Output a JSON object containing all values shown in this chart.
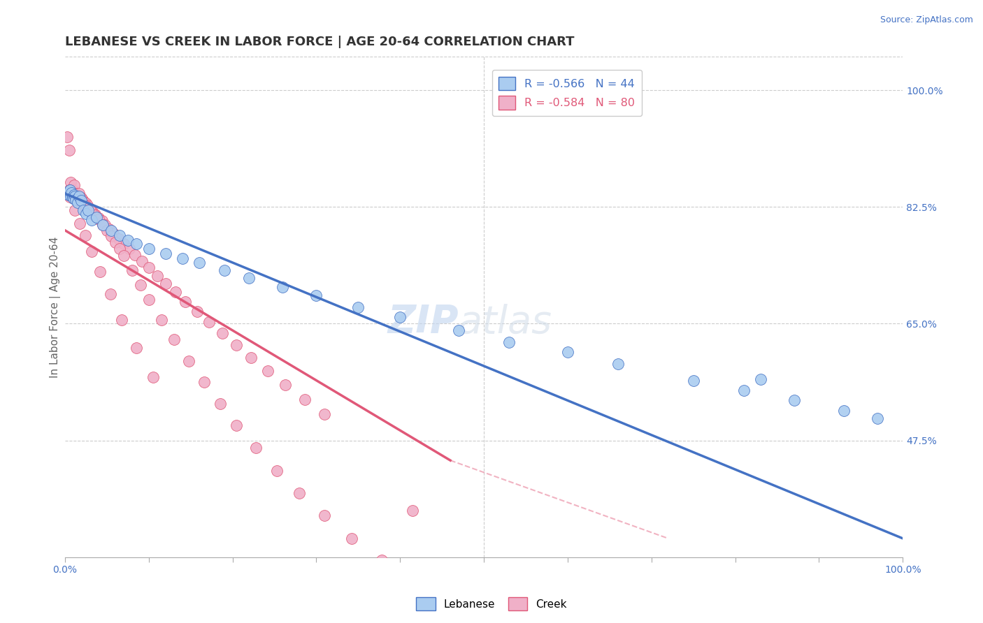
{
  "title": "LEBANESE VS CREEK IN LABOR FORCE | AGE 20-64 CORRELATION CHART",
  "source_text": "Source: ZipAtlas.com",
  "ylabel": "In Labor Force | Age 20-64",
  "xlim": [
    0.0,
    1.0
  ],
  "ylim": [
    0.3,
    1.05
  ],
  "yticks_right": [
    1.0,
    0.825,
    0.65,
    0.475
  ],
  "ytick_right_labels": [
    "100.0%",
    "82.5%",
    "65.0%",
    "47.5%"
  ],
  "legend_items": [
    {
      "label": "R = -0.566   N = 44",
      "facecolor": "#aaccf0",
      "edgecolor": "#4472c4",
      "text_color": "#4472c4"
    },
    {
      "label": "R = -0.584   N = 80",
      "facecolor": "#f0b0c8",
      "edgecolor": "#e05878",
      "text_color": "#e05878"
    }
  ],
  "legend_labels": [
    "Lebanese",
    "Creek"
  ],
  "watermark_zip": "ZIP",
  "watermark_atlas": "atlas",
  "blue_color": "#4472c4",
  "pink_color": "#e05878",
  "blue_scatter_color": "#aaccf0",
  "blue_scatter_edge": "#4472c4",
  "pink_scatter_color": "#f0b0c8",
  "pink_scatter_edge": "#e05878",
  "blue_line": [
    [
      0.0,
      0.845
    ],
    [
      1.0,
      0.328
    ]
  ],
  "pink_line_solid": [
    [
      0.0,
      0.79
    ],
    [
      0.46,
      0.445
    ]
  ],
  "pink_line_dash": [
    [
      0.46,
      0.445
    ],
    [
      0.72,
      0.328
    ]
  ],
  "blue_scatter_x": [
    0.003,
    0.004,
    0.005,
    0.006,
    0.007,
    0.008,
    0.009,
    0.01,
    0.011,
    0.012,
    0.013,
    0.015,
    0.017,
    0.019,
    0.022,
    0.025,
    0.028,
    0.032,
    0.038,
    0.045,
    0.055,
    0.065,
    0.075,
    0.085,
    0.1,
    0.12,
    0.14,
    0.16,
    0.19,
    0.22,
    0.26,
    0.3,
    0.35,
    0.4,
    0.47,
    0.53,
    0.6,
    0.66,
    0.75,
    0.81,
    0.87,
    0.93,
    0.97,
    0.83
  ],
  "blue_scatter_y": [
    0.845,
    0.843,
    0.848,
    0.85,
    0.842,
    0.846,
    0.84,
    0.838,
    0.843,
    0.841,
    0.836,
    0.832,
    0.841,
    0.835,
    0.82,
    0.815,
    0.82,
    0.805,
    0.81,
    0.798,
    0.79,
    0.782,
    0.775,
    0.77,
    0.762,
    0.755,
    0.748,
    0.742,
    0.73,
    0.718,
    0.705,
    0.692,
    0.675,
    0.66,
    0.64,
    0.622,
    0.608,
    0.59,
    0.565,
    0.55,
    0.535,
    0.52,
    0.508,
    0.567
  ],
  "pink_scatter_x": [
    0.003,
    0.005,
    0.007,
    0.009,
    0.011,
    0.013,
    0.015,
    0.017,
    0.019,
    0.021,
    0.023,
    0.025,
    0.027,
    0.03,
    0.033,
    0.036,
    0.04,
    0.044,
    0.048,
    0.053,
    0.058,
    0.064,
    0.07,
    0.077,
    0.084,
    0.092,
    0.1,
    0.11,
    0.12,
    0.132,
    0.144,
    0.158,
    0.172,
    0.188,
    0.205,
    0.222,
    0.242,
    0.263,
    0.286,
    0.31,
    0.005,
    0.01,
    0.015,
    0.02,
    0.025,
    0.03,
    0.035,
    0.04,
    0.045,
    0.05,
    0.055,
    0.06,
    0.065,
    0.07,
    0.08,
    0.09,
    0.1,
    0.115,
    0.13,
    0.148,
    0.166,
    0.185,
    0.205,
    0.228,
    0.253,
    0.28,
    0.31,
    0.342,
    0.378,
    0.415,
    0.006,
    0.012,
    0.018,
    0.024,
    0.032,
    0.042,
    0.054,
    0.068,
    0.085,
    0.105
  ],
  "pink_scatter_y": [
    0.93,
    0.91,
    0.862,
    0.85,
    0.858,
    0.845,
    0.842,
    0.845,
    0.839,
    0.836,
    0.833,
    0.83,
    0.827,
    0.822,
    0.818,
    0.814,
    0.809,
    0.804,
    0.798,
    0.792,
    0.785,
    0.777,
    0.77,
    0.762,
    0.753,
    0.744,
    0.734,
    0.722,
    0.71,
    0.697,
    0.683,
    0.668,
    0.652,
    0.636,
    0.618,
    0.599,
    0.579,
    0.558,
    0.536,
    0.514,
    0.85,
    0.838,
    0.836,
    0.831,
    0.826,
    0.82,
    0.813,
    0.806,
    0.798,
    0.79,
    0.781,
    0.772,
    0.762,
    0.752,
    0.73,
    0.708,
    0.686,
    0.656,
    0.626,
    0.594,
    0.562,
    0.53,
    0.498,
    0.464,
    0.43,
    0.396,
    0.362,
    0.328,
    0.295,
    0.37,
    0.84,
    0.82,
    0.8,
    0.782,
    0.758,
    0.728,
    0.694,
    0.656,
    0.614,
    0.57
  ],
  "grid_color": "#cccccc",
  "background_color": "#ffffff",
  "title_fontsize": 13,
  "axis_label_fontsize": 11,
  "tick_fontsize": 10,
  "right_tick_color": "#4472c4"
}
